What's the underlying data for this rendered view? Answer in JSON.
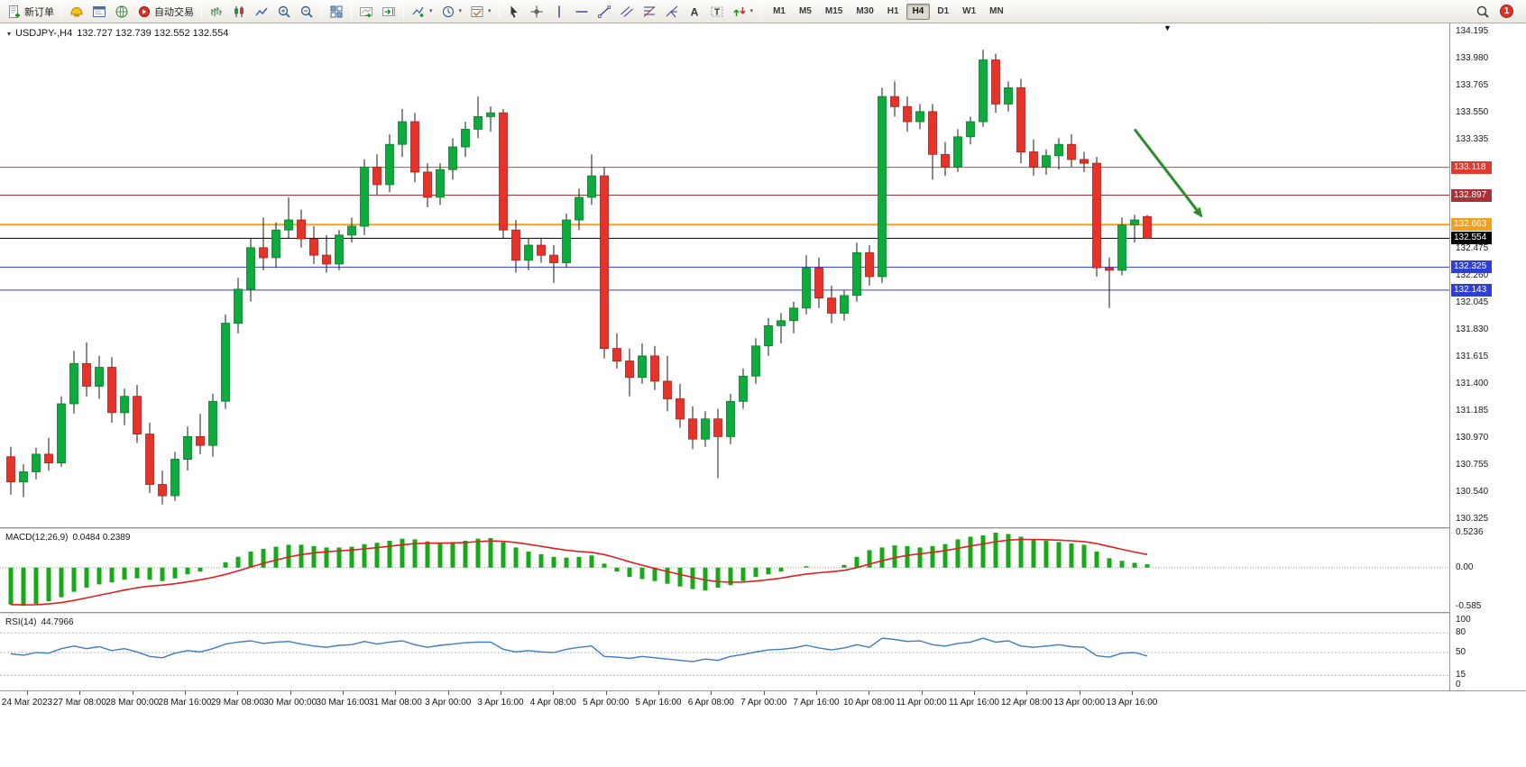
{
  "icons": {
    "caret_down": "▾",
    "one_click_collapse": "▾",
    "chart_shift_marker": "▼",
    "text_tool": "A",
    "label_tool": "T"
  },
  "toolbar": {
    "new_order": {
      "label": "新订单"
    },
    "auto_trading": {
      "label": "自动交易"
    },
    "timeframes": {
      "items": [
        "M1",
        "M5",
        "M15",
        "M30",
        "H1",
        "H4",
        "D1",
        "W1",
        "MN"
      ],
      "active": "H4"
    },
    "notification": {
      "count": "1"
    }
  },
  "chart": {
    "symbol_period": "USDJPY-,H4",
    "ohlc_text": "132.727 132.739 132.552 132.554"
  },
  "levels": [
    {
      "price": 133.118,
      "label": "133.118",
      "color": "#e2392e",
      "width": 1
    },
    {
      "price": 132.897,
      "label": "132.897",
      "color": "#a8323a",
      "width": 1
    },
    {
      "price": 132.663,
      "label": "132.663",
      "color": "#f0a01d",
      "width": 2
    },
    {
      "price": 132.554,
      "label": "132.554",
      "color": "#000000",
      "width": 1,
      "role": "current-price"
    },
    {
      "price": 132.325,
      "label": "132.325",
      "color": "#2f3fd3",
      "width": 1
    },
    {
      "price": 132.143,
      "label": "132.143",
      "color": "#2f3fd3",
      "width": 1
    }
  ],
  "chart_data": [
    {
      "type": "candlestick",
      "symbol": "USDJPY-",
      "timeframe": "H4",
      "last_ohlc": {
        "open": 132.727,
        "high": 132.739,
        "low": 132.552,
        "close": 132.554
      },
      "price_axis": {
        "min": 130.26,
        "max": 134.26,
        "tick_labels": [
          "134.195",
          "133.980",
          "133.765",
          "133.550",
          "133.335",
          "132.475",
          "132.260",
          "132.045",
          "131.830",
          "131.615",
          "131.400",
          "131.185",
          "130.970",
          "130.755",
          "130.540",
          "130.325"
        ]
      },
      "time_labels": [
        "24 Mar 2023",
        "27 Mar 08:00",
        "28 Mar 00:00",
        "28 Mar 16:00",
        "29 Mar 08:00",
        "30 Mar 00:00",
        "30 Mar 16:00",
        "31 Mar 08:00",
        "3 Apr 00:00",
        "3 Apr 16:00",
        "4 Apr 08:00",
        "5 Apr 00:00",
        "5 Apr 16:00",
        "6 Apr 08:00",
        "7 Apr 00:00",
        "7 Apr 16:00",
        "10 Apr 08:00",
        "11 Apr 00:00",
        "11 Apr 16:00",
        "12 Apr 08:00",
        "13 Apr 00:00",
        "13 Apr 16:00"
      ],
      "colors": {
        "up": "#0cab3c",
        "down": "#e63228",
        "wick": "#1a1a1a"
      },
      "arrow_annotation": {
        "from_index": 89,
        "from_price": 133.42,
        "to_index": 94.3,
        "to_price": 132.73,
        "color": "#2e8b2e"
      },
      "candles": [
        [
          130.82,
          130.9,
          130.52,
          130.62
        ],
        [
          130.62,
          130.76,
          130.5,
          130.7
        ],
        [
          130.7,
          130.89,
          130.64,
          130.84
        ],
        [
          130.84,
          130.97,
          130.71,
          130.77
        ],
        [
          130.77,
          131.3,
          130.74,
          131.24
        ],
        [
          131.24,
          131.66,
          131.16,
          131.56
        ],
        [
          131.56,
          131.73,
          131.3,
          131.38
        ],
        [
          131.38,
          131.62,
          131.28,
          131.53
        ],
        [
          131.53,
          131.61,
          131.09,
          131.17
        ],
        [
          131.17,
          131.36,
          131.07,
          131.3
        ],
        [
          131.3,
          131.39,
          130.93,
          131.0
        ],
        [
          131.0,
          131.09,
          130.53,
          130.6
        ],
        [
          130.6,
          130.71,
          130.44,
          130.51
        ],
        [
          130.51,
          130.86,
          130.47,
          130.8
        ],
        [
          130.8,
          131.06,
          130.71,
          130.98
        ],
        [
          130.98,
          131.16,
          130.84,
          130.91
        ],
        [
          130.91,
          131.32,
          130.82,
          131.26
        ],
        [
          131.26,
          131.95,
          131.2,
          131.88
        ],
        [
          131.88,
          132.24,
          131.8,
          132.15
        ],
        [
          132.15,
          132.55,
          132.05,
          132.48
        ],
        [
          132.48,
          132.72,
          132.3,
          132.4
        ],
        [
          132.4,
          132.68,
          132.32,
          132.62
        ],
        [
          132.62,
          132.88,
          132.55,
          132.7
        ],
        [
          132.7,
          132.78,
          132.48,
          132.55
        ],
        [
          132.55,
          132.65,
          132.35,
          132.42
        ],
        [
          132.42,
          132.58,
          132.28,
          132.35
        ],
        [
          132.35,
          132.62,
          132.3,
          132.58
        ],
        [
          132.58,
          132.72,
          132.52,
          132.65
        ],
        [
          132.65,
          133.18,
          132.58,
          133.12
        ],
        [
          133.12,
          133.22,
          132.9,
          132.98
        ],
        [
          132.98,
          133.38,
          132.92,
          133.3
        ],
        [
          133.3,
          133.58,
          133.2,
          133.48
        ],
        [
          133.48,
          133.55,
          133.0,
          133.08
        ],
        [
          133.08,
          133.15,
          132.8,
          132.88
        ],
        [
          132.88,
          133.15,
          132.82,
          133.1
        ],
        [
          133.1,
          133.35,
          133.02,
          133.28
        ],
        [
          133.28,
          133.48,
          133.2,
          133.42
        ],
        [
          133.42,
          133.68,
          133.35,
          133.52
        ],
        [
          133.52,
          133.6,
          133.4,
          133.55
        ],
        [
          133.55,
          133.58,
          132.55,
          132.62
        ],
        [
          132.62,
          132.7,
          132.28,
          132.38
        ],
        [
          132.38,
          132.55,
          132.3,
          132.5
        ],
        [
          132.5,
          132.56,
          132.36,
          132.42
        ],
        [
          132.42,
          132.5,
          132.2,
          132.36
        ],
        [
          132.36,
          132.75,
          132.32,
          132.7
        ],
        [
          132.7,
          132.95,
          132.62,
          132.88
        ],
        [
          132.88,
          133.22,
          132.82,
          133.05
        ],
        [
          133.05,
          133.12,
          131.6,
          131.68
        ],
        [
          131.68,
          131.8,
          131.52,
          131.58
        ],
        [
          131.58,
          131.68,
          131.3,
          131.45
        ],
        [
          131.45,
          131.72,
          131.4,
          131.62
        ],
        [
          131.62,
          131.7,
          131.35,
          131.42
        ],
        [
          131.42,
          131.62,
          131.18,
          131.28
        ],
        [
          131.28,
          131.4,
          131.05,
          131.12
        ],
        [
          131.12,
          131.22,
          130.88,
          130.96
        ],
        [
          130.96,
          131.18,
          130.9,
          131.12
        ],
        [
          131.12,
          131.2,
          130.65,
          130.98
        ],
        [
          130.98,
          131.32,
          130.92,
          131.26
        ],
        [
          131.26,
          131.52,
          131.2,
          131.46
        ],
        [
          131.46,
          131.76,
          131.4,
          131.7
        ],
        [
          131.7,
          131.92,
          131.62,
          131.86
        ],
        [
          131.86,
          131.96,
          131.72,
          131.9
        ],
        [
          131.9,
          132.05,
          131.8,
          132.0
        ],
        [
          132.0,
          132.42,
          131.95,
          132.32
        ],
        [
          132.32,
          132.4,
          132.0,
          132.08
        ],
        [
          132.08,
          132.18,
          131.88,
          131.96
        ],
        [
          131.96,
          132.14,
          131.9,
          132.1
        ],
        [
          132.1,
          132.52,
          132.05,
          132.44
        ],
        [
          132.44,
          132.5,
          132.18,
          132.25
        ],
        [
          132.25,
          133.75,
          132.2,
          133.68
        ],
        [
          133.68,
          133.8,
          133.52,
          133.6
        ],
        [
          133.6,
          133.68,
          133.4,
          133.48
        ],
        [
          133.48,
          133.62,
          133.42,
          133.56
        ],
        [
          133.56,
          133.62,
          133.02,
          133.22
        ],
        [
          133.22,
          133.32,
          133.05,
          133.12
        ],
        [
          133.12,
          133.42,
          133.08,
          133.36
        ],
        [
          133.36,
          133.52,
          133.3,
          133.48
        ],
        [
          133.48,
          134.05,
          133.44,
          133.97
        ],
        [
          133.97,
          134.02,
          133.55,
          133.62
        ],
        [
          133.62,
          133.8,
          133.56,
          133.75
        ],
        [
          133.75,
          133.82,
          133.15,
          133.24
        ],
        [
          133.24,
          133.34,
          133.05,
          133.12
        ],
        [
          133.12,
          133.26,
          133.06,
          133.21
        ],
        [
          133.21,
          133.35,
          133.1,
          133.3
        ],
        [
          133.3,
          133.38,
          133.12,
          133.18
        ],
        [
          133.18,
          133.24,
          133.08,
          133.15
        ],
        [
          133.15,
          133.2,
          132.25,
          132.32
        ],
        [
          132.32,
          132.4,
          132.0,
          132.3
        ],
        [
          132.3,
          132.72,
          132.26,
          132.66
        ],
        [
          132.66,
          132.74,
          132.52,
          132.7
        ],
        [
          132.727,
          132.739,
          132.552,
          132.554
        ]
      ]
    },
    {
      "type": "bar",
      "name": "MACD(12,26,9)",
      "values_text": "0.0484 0.2389",
      "main_value": 0.0484,
      "signal_value": 0.2389,
      "ylim": [
        -0.66,
        0.56
      ],
      "axis_labels": [
        {
          "value": 0.5236,
          "label": "0.5236"
        },
        {
          "value": 0,
          "label": "0.00"
        },
        {
          "value": -0.585,
          "label": "-0.585"
        }
      ],
      "colors": {
        "histogram": "#19a819",
        "signal": "#e02020",
        "zero_line": "#9a9a9a"
      },
      "histogram": [
        -0.55,
        -0.57,
        -0.54,
        -0.5,
        -0.44,
        -0.36,
        -0.3,
        -0.25,
        -0.22,
        -0.18,
        -0.16,
        -0.18,
        -0.2,
        -0.16,
        -0.1,
        -0.06,
        0.0,
        0.08,
        0.16,
        0.24,
        0.28,
        0.31,
        0.34,
        0.34,
        0.32,
        0.3,
        0.3,
        0.31,
        0.35,
        0.37,
        0.4,
        0.43,
        0.42,
        0.39,
        0.37,
        0.38,
        0.4,
        0.43,
        0.44,
        0.38,
        0.3,
        0.24,
        0.2,
        0.16,
        0.15,
        0.16,
        0.18,
        0.06,
        -0.06,
        -0.14,
        -0.17,
        -0.2,
        -0.24,
        -0.28,
        -0.32,
        -0.34,
        -0.3,
        -0.26,
        -0.2,
        -0.14,
        -0.1,
        -0.06,
        0.0,
        0.02,
        0.0,
        0.0,
        0.04,
        0.16,
        0.26,
        0.3,
        0.33,
        0.32,
        0.3,
        0.32,
        0.35,
        0.42,
        0.46,
        0.48,
        0.52,
        0.5,
        0.46,
        0.42,
        0.4,
        0.38,
        0.36,
        0.34,
        0.24,
        0.14,
        0.1,
        0.07,
        0.05
      ]
    },
    {
      "type": "line",
      "name": "RSI(14)",
      "value_text": "44.7966",
      "value": 44.7966,
      "ylim": [
        -8,
        108
      ],
      "levels": [
        80,
        50,
        15
      ],
      "axis_labels": [
        {
          "value": 100,
          "label": "100"
        },
        {
          "value": 80,
          "label": "80"
        },
        {
          "value": 50,
          "label": "50"
        },
        {
          "value": 15,
          "label": "15"
        },
        {
          "value": 0,
          "label": "0"
        }
      ],
      "colors": {
        "line": "#3f7cc4",
        "level": "#b0b0b0"
      },
      "values": [
        48,
        46,
        50,
        49,
        56,
        60,
        56,
        59,
        53,
        56,
        51,
        44,
        42,
        49,
        53,
        51,
        56,
        63,
        66,
        68,
        64,
        66,
        67,
        63,
        60,
        58,
        61,
        62,
        67,
        63,
        66,
        68,
        62,
        58,
        61,
        63,
        65,
        66,
        66,
        55,
        51,
        53,
        51,
        50,
        55,
        58,
        60,
        44,
        43,
        41,
        44,
        42,
        40,
        38,
        36,
        40,
        38,
        44,
        47,
        51,
        54,
        55,
        57,
        61,
        57,
        54,
        57,
        62,
        58,
        72,
        70,
        67,
        68,
        62,
        60,
        64,
        66,
        72,
        66,
        68,
        60,
        58,
        60,
        62,
        59,
        58,
        45,
        43,
        49,
        50,
        44.8
      ]
    }
  ]
}
